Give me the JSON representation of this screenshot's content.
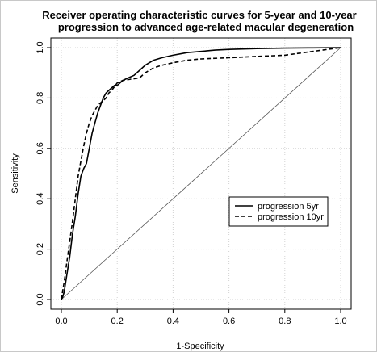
{
  "chart_data": {
    "type": "line",
    "title_line1": "Receiver operating characteristic curves for 5-year and 10-year",
    "title_line2": "progression to advanced age-related macular degeneration",
    "xlabel": "1-Specificity",
    "ylabel": "Sensitivity",
    "xlim": [
      0.0,
      1.0
    ],
    "ylim": [
      0.0,
      1.0
    ],
    "x_ticks": [
      "0.0",
      "0.2",
      "0.4",
      "0.6",
      "0.8",
      "1.0"
    ],
    "y_ticks": [
      "0.0",
      "0.2",
      "0.4",
      "0.6",
      "0.8",
      "1.0"
    ],
    "grid": true,
    "legend_position": "right-center",
    "reference_line": true,
    "series": [
      {
        "name": "progression 5yr",
        "style": "solid",
        "x": [
          0.0,
          0.005,
          0.01,
          0.02,
          0.03,
          0.04,
          0.05,
          0.06,
          0.07,
          0.08,
          0.09,
          0.1,
          0.11,
          0.12,
          0.13,
          0.14,
          0.15,
          0.16,
          0.17,
          0.18,
          0.19,
          0.2,
          0.21,
          0.22,
          0.24,
          0.26,
          0.28,
          0.3,
          0.33,
          0.36,
          0.4,
          0.45,
          0.5,
          0.55,
          0.6,
          0.7,
          0.8,
          0.9,
          1.0
        ],
        "y": [
          0.0,
          0.01,
          0.03,
          0.1,
          0.17,
          0.26,
          0.33,
          0.42,
          0.49,
          0.52,
          0.54,
          0.6,
          0.66,
          0.7,
          0.74,
          0.77,
          0.8,
          0.82,
          0.83,
          0.84,
          0.85,
          0.85,
          0.86,
          0.87,
          0.88,
          0.89,
          0.91,
          0.93,
          0.95,
          0.96,
          0.97,
          0.98,
          0.985,
          0.99,
          0.993,
          0.996,
          0.998,
          0.999,
          1.0
        ]
      },
      {
        "name": "progression 10yr",
        "style": "dashed",
        "x": [
          0.0,
          0.01,
          0.02,
          0.03,
          0.04,
          0.05,
          0.06,
          0.07,
          0.08,
          0.09,
          0.1,
          0.11,
          0.12,
          0.13,
          0.14,
          0.15,
          0.16,
          0.17,
          0.18,
          0.2,
          0.22,
          0.25,
          0.28,
          0.3,
          0.33,
          0.36,
          0.4,
          0.45,
          0.5,
          0.6,
          0.7,
          0.8,
          0.9,
          1.0
        ],
        "y": [
          0.0,
          0.07,
          0.15,
          0.23,
          0.31,
          0.4,
          0.49,
          0.55,
          0.61,
          0.66,
          0.7,
          0.73,
          0.75,
          0.77,
          0.78,
          0.79,
          0.8,
          0.82,
          0.83,
          0.86,
          0.87,
          0.875,
          0.88,
          0.9,
          0.92,
          0.93,
          0.94,
          0.95,
          0.955,
          0.96,
          0.965,
          0.97,
          0.985,
          1.0
        ]
      }
    ]
  }
}
